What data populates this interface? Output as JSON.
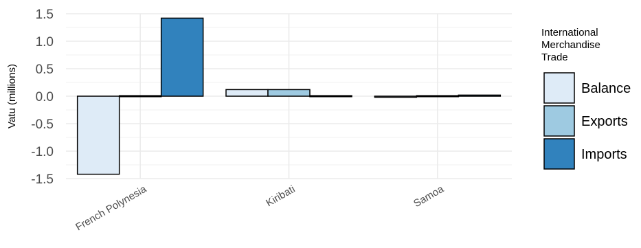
{
  "chart_data": {
    "type": "bar",
    "title": "",
    "xlabel": "",
    "ylabel": "Vatu (millions)",
    "ylim": [
      -1.5,
      1.5
    ],
    "yticks": [
      1.5,
      1.0,
      0.5,
      0.0,
      -0.5,
      -1.0,
      -1.5
    ],
    "ytick_labels": [
      "1.5",
      "1.0",
      "0.5",
      "0.0",
      "-0.5",
      "-1.0",
      "-1.5"
    ],
    "categories": [
      "French Polynesia",
      "Kiribati",
      "Samoa"
    ],
    "series": [
      {
        "name": "Balance",
        "color": "#deebf7",
        "values": [
          -1.42,
          0.12,
          -0.02
        ]
      },
      {
        "name": "Exports",
        "color": "#9ecae1",
        "values": [
          0.0,
          0.12,
          0.0
        ]
      },
      {
        "name": "Imports",
        "color": "#3182bd",
        "values": [
          1.42,
          0.0,
          0.02
        ]
      }
    ],
    "legend": {
      "title_lines": [
        "International",
        "Merchandise",
        "Trade"
      ],
      "position": "right"
    },
    "grid": true
  }
}
